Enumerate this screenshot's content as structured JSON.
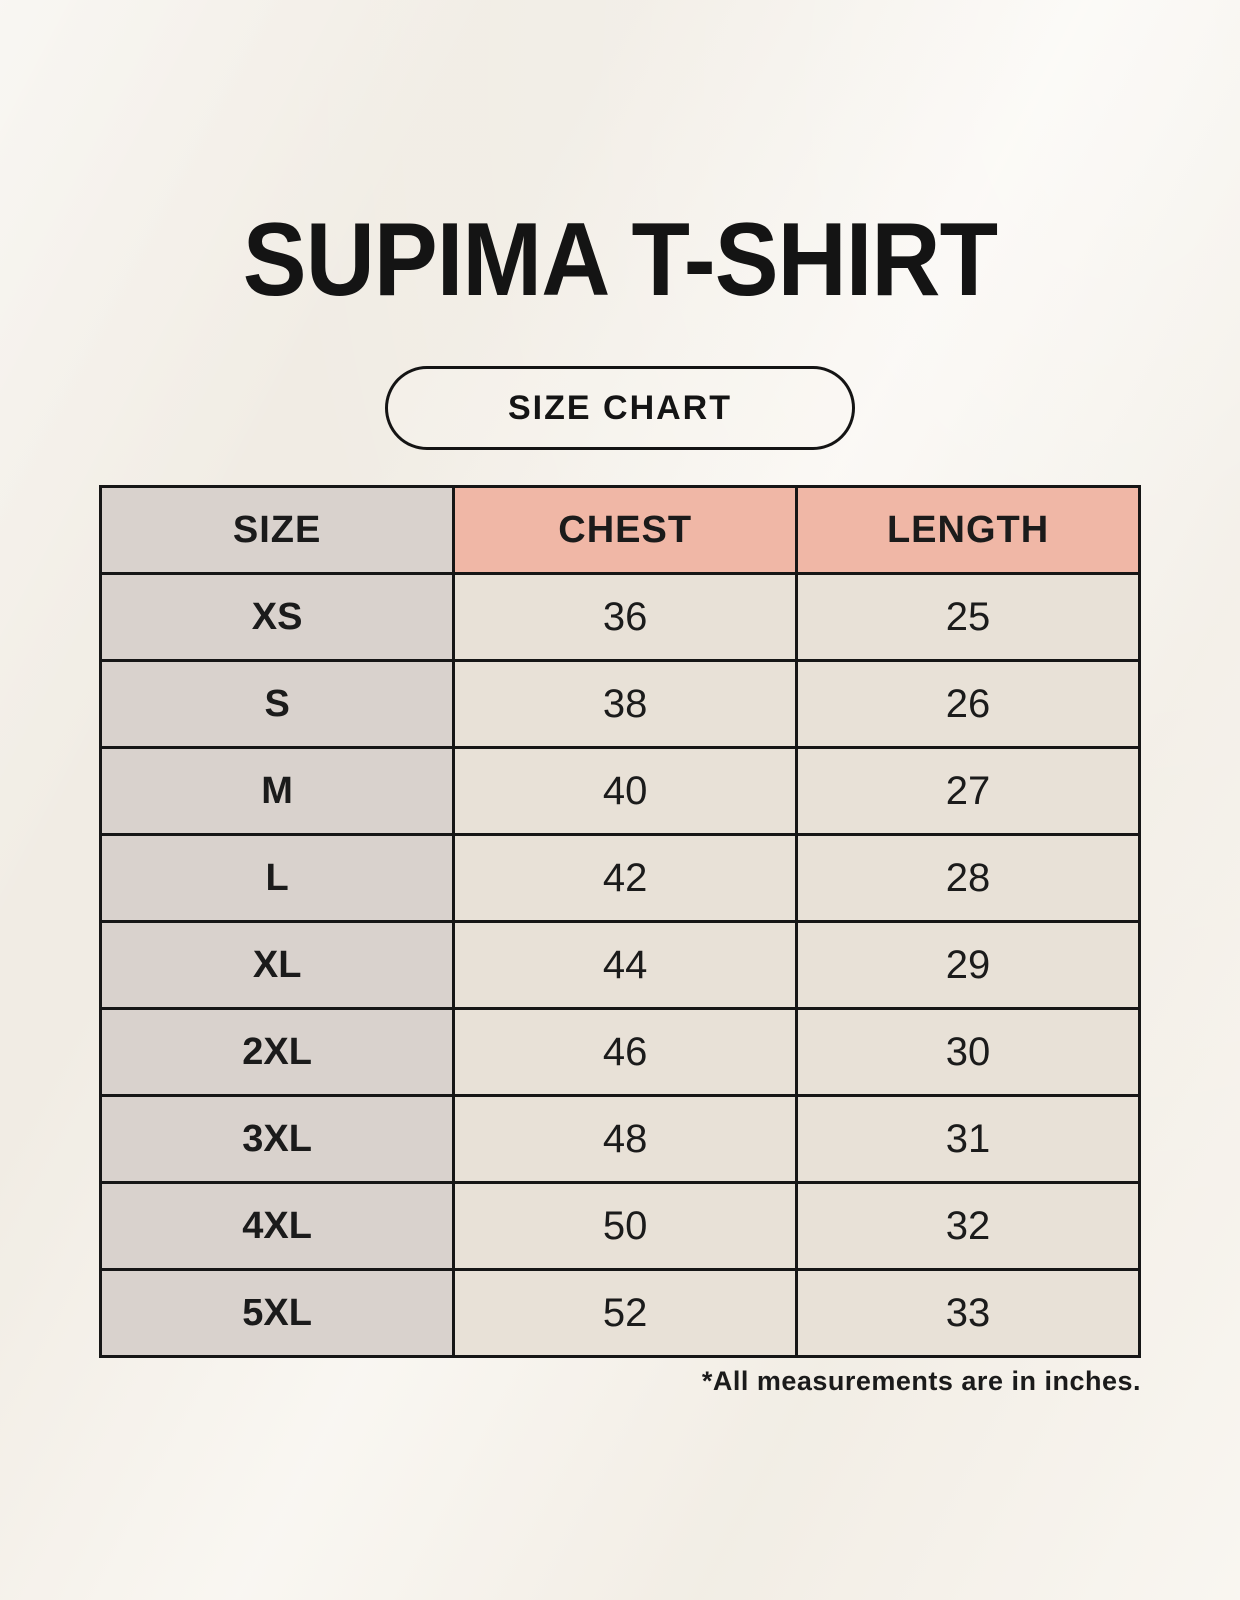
{
  "page": {
    "title": "SUPIMA T-SHIRT",
    "badge_label": "SIZE CHART",
    "footnote": "*All measurements are in inches."
  },
  "table": {
    "headers": {
      "size": "SIZE",
      "chest": "CHEST",
      "length": "LENGTH"
    },
    "rows": [
      {
        "size": "XS",
        "chest": "36",
        "length": "25"
      },
      {
        "size": "S",
        "chest": "38",
        "length": "26"
      },
      {
        "size": "M",
        "chest": "40",
        "length": "27"
      },
      {
        "size": "L",
        "chest": "42",
        "length": "28"
      },
      {
        "size": "XL",
        "chest": "44",
        "length": "29"
      },
      {
        "size": "2XL",
        "chest": "46",
        "length": "30"
      },
      {
        "size": "3XL",
        "chest": "48",
        "length": "31"
      },
      {
        "size": "4XL",
        "chest": "50",
        "length": "32"
      },
      {
        "size": "5XL",
        "chest": "52",
        "length": "33"
      }
    ]
  },
  "chart_data": {
    "type": "table",
    "title": "SUPIMA T-SHIRT",
    "subtitle": "SIZE CHART",
    "columns": [
      "SIZE",
      "CHEST",
      "LENGTH"
    ],
    "rows": [
      [
        "XS",
        36,
        25
      ],
      [
        "S",
        38,
        26
      ],
      [
        "M",
        40,
        27
      ],
      [
        "L",
        42,
        28
      ],
      [
        "XL",
        44,
        29
      ],
      [
        "2XL",
        46,
        30
      ],
      [
        "3XL",
        48,
        31
      ],
      [
        "4XL",
        50,
        32
      ],
      [
        "5XL",
        52,
        33
      ]
    ],
    "units": "inches",
    "note": "*All measurements are in inches."
  },
  "colors": {
    "page_background": "#f7f3ec",
    "header_size_bg": "#d9d2cd",
    "header_measure_bg": "#f0b7a6",
    "cell_size_bg": "#d9d2cd",
    "cell_value_bg": "#e8e1d7",
    "border": "#161616",
    "text": "#1b1b1b"
  }
}
